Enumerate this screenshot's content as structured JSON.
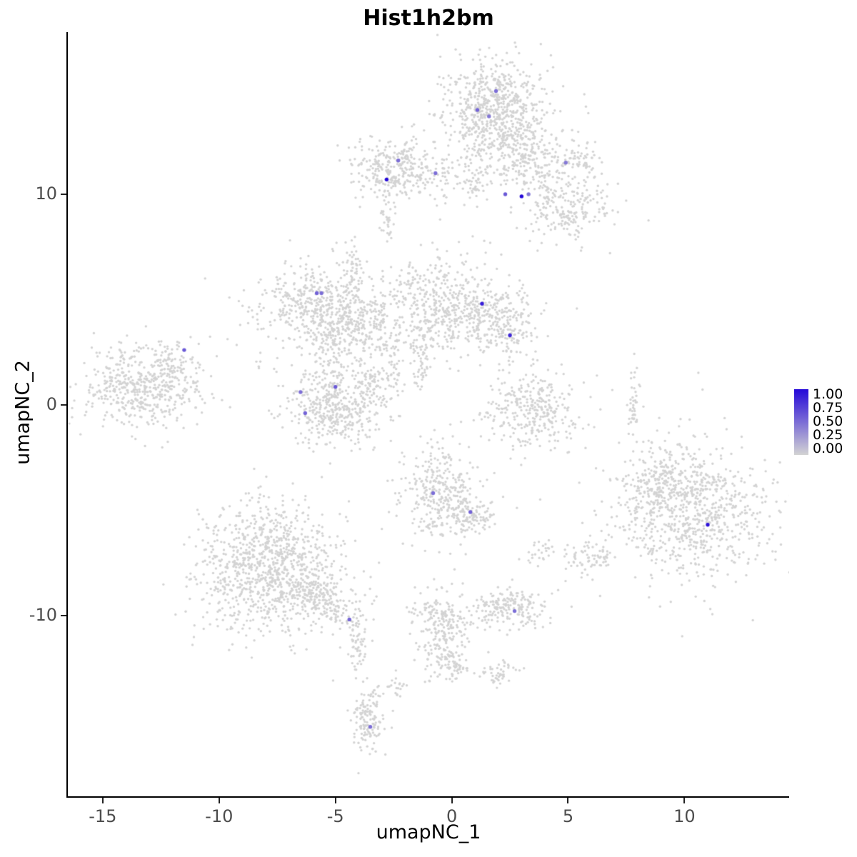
{
  "chart_data": {
    "type": "scatter",
    "title": "Hist1h2bm",
    "xlabel": "umapNC_1",
    "ylabel": "umapNC_2",
    "xlim": [
      -16.5,
      14.5
    ],
    "ylim": [
      -18.6,
      17.7
    ],
    "xticks": [
      -15,
      -10,
      -5,
      0,
      5,
      10
    ],
    "yticks": [
      -10,
      0,
      10
    ],
    "grid": false,
    "color_low": "#d3d3d3",
    "color_high": "#2408d8",
    "legend": {
      "position": "right",
      "labels": [
        "1.00",
        "0.75",
        "0.50",
        "0.25",
        "0.00"
      ],
      "min": 0.0,
      "max": 1.0
    },
    "clusters": [
      {
        "x": 1.8,
        "y": 14.1,
        "sx": 1.15,
        "sy": 1.15,
        "n": 650
      },
      {
        "x": 2.6,
        "y": 12.2,
        "sx": 0.9,
        "sy": 0.9,
        "n": 190
      },
      {
        "x": 3.9,
        "y": 11.3,
        "sx": 0.9,
        "sy": 0.7,
        "n": 120
      },
      {
        "x": 5.0,
        "y": 9.5,
        "sx": 0.9,
        "sy": 0.8,
        "n": 220
      },
      {
        "x": 5.6,
        "y": 11.7,
        "sx": 0.45,
        "sy": 0.45,
        "n": 40
      },
      {
        "x": -2.5,
        "y": 11.3,
        "sx": 0.85,
        "sy": 0.75,
        "n": 280
      },
      {
        "x": -0.9,
        "y": 10.9,
        "sx": 0.8,
        "sy": 0.5,
        "n": 70
      },
      {
        "x": 0.8,
        "y": 10.6,
        "sx": 0.55,
        "sy": 0.5,
        "n": 55
      },
      {
        "x": -2.8,
        "y": 8.7,
        "sx": 0.15,
        "sy": 0.7,
        "n": 25
      },
      {
        "x": -6.0,
        "y": 4.8,
        "sx": 1.3,
        "sy": 1.0,
        "n": 400
      },
      {
        "x": -4.5,
        "y": 3.5,
        "sx": 1.0,
        "sy": 0.7,
        "n": 240
      },
      {
        "x": -4.3,
        "y": 6.1,
        "sx": 0.25,
        "sy": 0.9,
        "n": 70
      },
      {
        "x": -3.3,
        "y": 4.2,
        "sx": 0.35,
        "sy": 0.8,
        "n": 60
      },
      {
        "x": -0.5,
        "y": 4.8,
        "sx": 1.2,
        "sy": 1.2,
        "n": 420
      },
      {
        "x": 1.7,
        "y": 4.2,
        "sx": 1.0,
        "sy": 0.8,
        "n": 250
      },
      {
        "x": 2.6,
        "y": 3.3,
        "sx": 0.4,
        "sy": 0.5,
        "n": 60
      },
      {
        "x": -1.4,
        "y": 2.0,
        "sx": 0.3,
        "sy": 0.8,
        "n": 50
      },
      {
        "x": -13.3,
        "y": 0.9,
        "sx": 1.3,
        "sy": 1.0,
        "n": 520
      },
      {
        "x": -12.0,
        "y": 2.1,
        "sx": 0.5,
        "sy": 0.4,
        "n": 45
      },
      {
        "x": -4.9,
        "y": -0.2,
        "sx": 1.2,
        "sy": 0.9,
        "n": 430
      },
      {
        "x": -3.4,
        "y": 1.1,
        "sx": 0.4,
        "sy": 0.5,
        "n": 55
      },
      {
        "x": -2.6,
        "y": 1.6,
        "sx": 0.2,
        "sy": 0.7,
        "n": 40
      },
      {
        "x": -5.2,
        "y": 1.8,
        "sx": 0.3,
        "sy": 0.8,
        "n": 55
      },
      {
        "x": 3.4,
        "y": -0.3,
        "sx": 1.0,
        "sy": 1.0,
        "n": 330
      },
      {
        "x": 7.8,
        "y": -0.1,
        "sx": 0.12,
        "sy": 0.8,
        "n": 45
      },
      {
        "x": -0.5,
        "y": -4.1,
        "sx": 0.9,
        "sy": 1.1,
        "n": 330
      },
      {
        "x": 0.8,
        "y": -5.3,
        "sx": 0.6,
        "sy": 0.45,
        "n": 90
      },
      {
        "x": 10.3,
        "y": -5.0,
        "sx": 1.7,
        "sy": 1.7,
        "n": 850
      },
      {
        "x": 9.0,
        "y": -3.7,
        "sx": 0.7,
        "sy": 0.7,
        "n": 120
      },
      {
        "x": 5.9,
        "y": -7.2,
        "sx": 0.5,
        "sy": 0.4,
        "n": 70
      },
      {
        "x": 3.8,
        "y": -6.9,
        "sx": 0.3,
        "sy": 0.3,
        "n": 25
      },
      {
        "x": -7.8,
        "y": -7.7,
        "sx": 1.6,
        "sy": 1.5,
        "n": 1000
      },
      {
        "x": -5.8,
        "y": -9.3,
        "sx": 1.0,
        "sy": 0.55,
        "n": 200,
        "rot": -25
      },
      {
        "x": -4.0,
        "y": -11.3,
        "sx": 0.25,
        "sy": 0.7,
        "n": 60
      },
      {
        "x": -0.5,
        "y": -10.6,
        "sx": 0.6,
        "sy": 1.0,
        "n": 240
      },
      {
        "x": 0.0,
        "y": -12.4,
        "sx": 0.45,
        "sy": 0.3,
        "n": 55,
        "rot": -35
      },
      {
        "x": 2.5,
        "y": -9.7,
        "sx": 0.8,
        "sy": 0.5,
        "n": 190
      },
      {
        "x": 2.1,
        "y": -12.8,
        "sx": 0.4,
        "sy": 0.3,
        "n": 45
      },
      {
        "x": -3.6,
        "y": -14.9,
        "sx": 0.4,
        "sy": 0.9,
        "n": 140
      },
      {
        "x": -2.4,
        "y": -13.2,
        "sx": 0.2,
        "sy": 0.3,
        "n": 18
      }
    ],
    "outliers": [
      {
        "x": -10.6,
        "y": 6.0
      },
      {
        "x": -5.1,
        "y": 7.3
      },
      {
        "x": -3.1,
        "y": 8.4
      },
      {
        "x": -0.5,
        "y": 8.8
      },
      {
        "x": 0.9,
        "y": 8.0
      },
      {
        "x": 6.8,
        "y": 7.2
      },
      {
        "x": 6.9,
        "y": 0.7
      },
      {
        "x": 3.8,
        "y": -4.5
      },
      {
        "x": 2.8,
        "y": -4.9
      },
      {
        "x": 3.3,
        "y": -7.4
      },
      {
        "x": 0.6,
        "y": -7.1
      },
      {
        "x": -2.1,
        "y": -6.6
      },
      {
        "x": -2.7,
        "y": -5.1
      },
      {
        "x": -5.1,
        "y": -13.1
      },
      {
        "x": -2.4,
        "y": -13.0
      },
      {
        "x": -2.2,
        "y": -13.5
      },
      {
        "x": 0.4,
        "y": -12.7
      },
      {
        "x": -2.9,
        "y": 9.7
      }
    ],
    "highlights": [
      {
        "x": 1.9,
        "y": 14.9,
        "v": 0.5
      },
      {
        "x": 1.1,
        "y": 14.0,
        "v": 0.55
      },
      {
        "x": 1.6,
        "y": 13.7,
        "v": 0.45
      },
      {
        "x": 4.9,
        "y": 11.5,
        "v": 0.45
      },
      {
        "x": -2.3,
        "y": 11.6,
        "v": 0.5
      },
      {
        "x": -2.8,
        "y": 10.7,
        "v": 1.0
      },
      {
        "x": -0.7,
        "y": 11.0,
        "v": 0.5
      },
      {
        "x": 2.3,
        "y": 10.0,
        "v": 0.6
      },
      {
        "x": 3.0,
        "y": 9.9,
        "v": 1.0
      },
      {
        "x": 3.3,
        "y": 10.0,
        "v": 0.45
      },
      {
        "x": -5.8,
        "y": 5.3,
        "v": 0.55
      },
      {
        "x": -5.6,
        "y": 5.3,
        "v": 0.5
      },
      {
        "x": 1.3,
        "y": 4.8,
        "v": 0.9
      },
      {
        "x": 2.5,
        "y": 3.3,
        "v": 0.85
      },
      {
        "x": -11.5,
        "y": 2.6,
        "v": 0.6
      },
      {
        "x": -5.0,
        "y": 0.85,
        "v": 0.6
      },
      {
        "x": -6.5,
        "y": 0.6,
        "v": 0.5
      },
      {
        "x": -6.3,
        "y": -0.4,
        "v": 0.55
      },
      {
        "x": -0.8,
        "y": -4.2,
        "v": 0.5
      },
      {
        "x": 0.8,
        "y": -5.1,
        "v": 0.55
      },
      {
        "x": 11.0,
        "y": -5.7,
        "v": 0.95
      },
      {
        "x": -4.4,
        "y": -10.2,
        "v": 0.55
      },
      {
        "x": 2.7,
        "y": -9.8,
        "v": 0.5
      },
      {
        "x": -3.5,
        "y": -15.3,
        "v": 0.5
      }
    ]
  }
}
